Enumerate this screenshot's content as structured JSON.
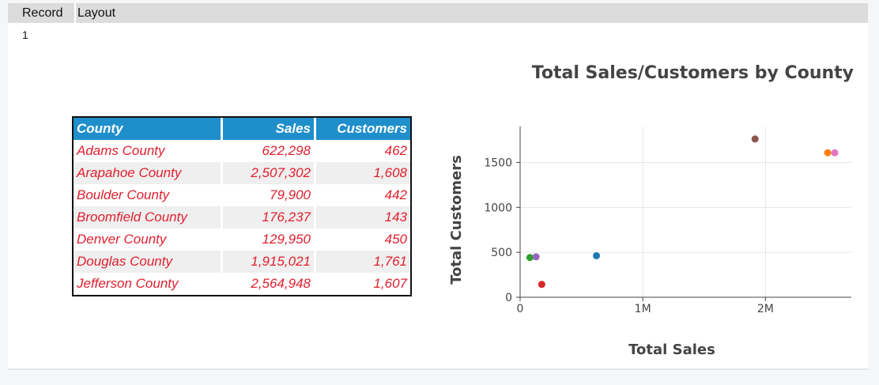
{
  "header": {
    "col1": "Record",
    "col2": "Layout"
  },
  "record_number": "1",
  "table": {
    "columns": [
      "County",
      "Sales",
      "Customers"
    ],
    "rows": [
      [
        "Adams County",
        "622,298",
        "462"
      ],
      [
        "Arapahoe County",
        "2,507,302",
        "1,608"
      ],
      [
        "Boulder County",
        "79,900",
        "442"
      ],
      [
        "Broomfield County",
        "176,237",
        "143"
      ],
      [
        "Denver County",
        "129,950",
        "450"
      ],
      [
        "Douglas County",
        "1,915,021",
        "1,761"
      ],
      [
        "Jefferson County",
        "2,564,948",
        "1,607"
      ]
    ]
  },
  "chart_data": {
    "type": "scatter",
    "title": "Total Sales/Customers by County",
    "xlabel": "Total Sales",
    "ylabel": "Total Customers",
    "xlim": [
      0,
      2700000
    ],
    "ylim": [
      0,
      1900
    ],
    "xticks": [
      {
        "v": 0,
        "label": "0"
      },
      {
        "v": 1000000,
        "label": "1M"
      },
      {
        "v": 2000000,
        "label": "2M"
      }
    ],
    "yticks": [
      {
        "v": 0,
        "label": "0"
      },
      {
        "v": 500,
        "label": "500"
      },
      {
        "v": 1000,
        "label": "1000"
      },
      {
        "v": 1500,
        "label": "1500"
      }
    ],
    "grid": true,
    "points": [
      {
        "x": 622298,
        "y": 462,
        "color": "#1f77b4"
      },
      {
        "x": 2507302,
        "y": 1608,
        "color": "#ff7f0e"
      },
      {
        "x": 79900,
        "y": 442,
        "color": "#2ca02c"
      },
      {
        "x": 176237,
        "y": 143,
        "color": "#d62728"
      },
      {
        "x": 129950,
        "y": 450,
        "color": "#9467bd"
      },
      {
        "x": 1915021,
        "y": 1761,
        "color": "#8c564b"
      },
      {
        "x": 2564948,
        "y": 1607,
        "color": "#e377c2"
      }
    ]
  }
}
